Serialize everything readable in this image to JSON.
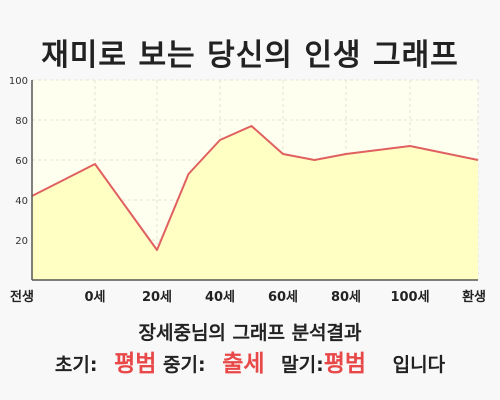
{
  "title": "재미로 보는 당신의 인생 그래프",
  "chart_data": {
    "type": "area",
    "x_labels": [
      "전생",
      "0세",
      "20세",
      "40세",
      "60세",
      "80세",
      "100세",
      "환생"
    ],
    "y_ticks": [
      20,
      40,
      60,
      80,
      100
    ],
    "ylim": [
      0,
      100
    ],
    "points": [
      {
        "x": -30,
        "y": 42
      },
      {
        "x": 0,
        "y": 58
      },
      {
        "x": 20,
        "y": 15
      },
      {
        "x": 30,
        "y": 53
      },
      {
        "x": 40,
        "y": 70
      },
      {
        "x": 50,
        "y": 77
      },
      {
        "x": 60,
        "y": 63
      },
      {
        "x": 70,
        "y": 60
      },
      {
        "x": 80,
        "y": 63
      },
      {
        "x": 100,
        "y": 67
      },
      {
        "x": 130,
        "y": 60
      }
    ],
    "colors": {
      "line": "#e06060",
      "fill": "#ffffc4",
      "grid": "#e3e3cf",
      "frame": "#555555"
    }
  },
  "result": {
    "caption": "장세중님의 그래프 분석결과",
    "early_label": "초기:",
    "early_value": "평범",
    "mid_label": "중기:",
    "mid_value": "출세",
    "late_label": "말기:",
    "late_value": "평범",
    "suffix": "입니다",
    "highlight_color": "#e84848"
  }
}
